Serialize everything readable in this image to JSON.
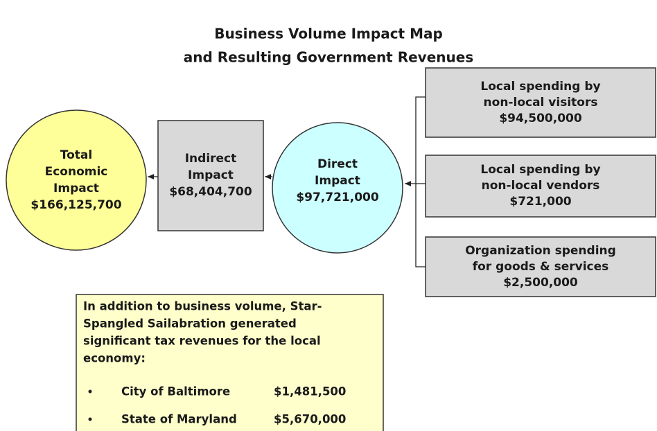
{
  "title": [
    "Business Volume Impact Map",
    "and Resulting Government Revenues"
  ],
  "nodes": [
    {
      "lines": [
        "Total",
        "Economic",
        "Impact",
        "$166,125,700"
      ]
    },
    {
      "lines": [
        "Indirect",
        "Impact",
        "$68,404,700"
      ]
    },
    {
      "lines": [
        "Direct",
        "Impact",
        "$97,721,000"
      ]
    },
    {
      "lines": [
        "Local spending by",
        "non-local visitors",
        "$94,500,000"
      ]
    },
    {
      "lines": [
        "Local spending by",
        "non-local vendors",
        "$721,000"
      ]
    },
    {
      "lines": [
        "Organization spending",
        "for goods & services",
        "$2,500,000"
      ]
    }
  ],
  "note": {
    "lines": [
      "In addition to business volume, Star-",
      "Spangled Sailabration generated",
      "significant tax revenues for the local",
      "economy:"
    ],
    "items": [
      {
        "label": "City of Baltimore",
        "amount": "$1,481,500"
      },
      {
        "label": "State of Maryland",
        "amount": "$5,670,000"
      }
    ]
  }
}
